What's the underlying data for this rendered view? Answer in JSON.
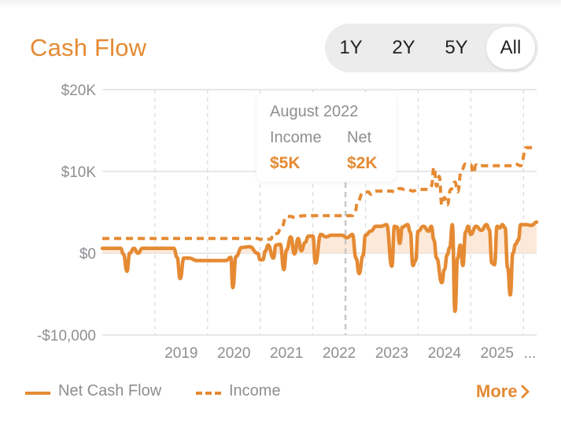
{
  "title": "Cash Flow",
  "range": {
    "options": [
      "1Y",
      "2Y",
      "5Y",
      "All"
    ],
    "selected": "All"
  },
  "tooltip": {
    "date": "August 2022",
    "income_label": "Income",
    "net_label": "Net",
    "income_value": "$5K",
    "net_value": "$2K"
  },
  "legend": {
    "net": "Net Cash Flow",
    "income": "Income"
  },
  "more_label": "More",
  "colors": {
    "accent": "#e58a33",
    "fill": "#fbe3cf",
    "grid": "#d9d9d9",
    "axis_text": "#8e8e93"
  },
  "chart_data": {
    "type": "line",
    "ylim": [
      -10000,
      20000
    ],
    "xlim": [
      2018.0,
      2026.25
    ],
    "y_ticks": [
      20000,
      10000,
      0,
      -10000
    ],
    "y_tick_labels": [
      "$20K",
      "$10K",
      "$0",
      "-$10,000"
    ],
    "x_tick_labels": [
      "2019",
      "2020",
      "2021",
      "2022",
      "2023",
      "2024",
      "2025",
      "..."
    ],
    "grid": true,
    "highlight_x": 2022.62,
    "series": [
      {
        "name": "Net Cash Flow",
        "style": "solid",
        "fill": true,
        "x": [
          2018.0,
          2018.35,
          2018.4,
          2018.47,
          2018.52,
          2018.6,
          2018.68,
          2018.76,
          2018.84,
          2019.0,
          2019.2,
          2019.36,
          2019.42,
          2019.48,
          2019.55,
          2019.65,
          2019.8,
          2020.0,
          2020.2,
          2020.35,
          2020.44,
          2020.48,
          2020.54,
          2020.65,
          2020.8,
          2020.95,
          2021.0,
          2021.05,
          2021.1,
          2021.15,
          2021.25,
          2021.3,
          2021.38,
          2021.45,
          2021.5,
          2021.58,
          2021.65,
          2021.72,
          2021.78,
          2021.85,
          2021.92,
          2022.0,
          2022.05,
          2022.15,
          2022.25,
          2022.35,
          2022.45,
          2022.55,
          2022.65,
          2022.75,
          2022.82,
          2022.88,
          2022.95,
          2023.0,
          2023.1,
          2023.2,
          2023.3,
          2023.4,
          2023.5,
          2023.55,
          2023.6,
          2023.65,
          2023.7,
          2023.8,
          2023.85,
          2023.9,
          2023.95,
          2024.0,
          2024.1,
          2024.2,
          2024.25,
          2024.3,
          2024.35,
          2024.45,
          2024.5,
          2024.55,
          2024.6,
          2024.65,
          2024.7,
          2024.75,
          2024.8,
          2024.85,
          2024.9,
          2024.95,
          2025.0,
          2025.1,
          2025.2,
          2025.3,
          2025.35,
          2025.4,
          2025.45,
          2025.5,
          2025.55,
          2025.6,
          2025.65,
          2025.7,
          2025.75,
          2025.8,
          2025.85,
          2025.9,
          2025.95,
          2026.05,
          2026.15,
          2026.25
        ],
        "values": [
          600,
          600,
          -100,
          -2200,
          0,
          600,
          0,
          600,
          600,
          600,
          600,
          600,
          -500,
          -3100,
          -600,
          -600,
          -900,
          -900,
          -900,
          -900,
          -500,
          -4200,
          -400,
          700,
          800,
          0,
          -800,
          -800,
          300,
          1000,
          -600,
          1000,
          1100,
          -2000,
          400,
          2000,
          -100,
          1800,
          300,
          1300,
          2100,
          2100,
          -1200,
          2300,
          2000,
          2200,
          2200,
          2200,
          1900,
          2300,
          -600,
          -2500,
          -300,
          2200,
          2700,
          3300,
          3300,
          3500,
          -1600,
          3300,
          3200,
          1200,
          3200,
          3500,
          2600,
          -1500,
          -900,
          2700,
          3300,
          2700,
          3300,
          1600,
          -600,
          -3600,
          -2000,
          -200,
          700,
          3500,
          -7100,
          -600,
          1000,
          -1500,
          2600,
          3300,
          2300,
          3300,
          2800,
          3500,
          2900,
          -1200,
          -1400,
          3300,
          3100,
          3500,
          3100,
          -1800,
          -5100,
          0,
          1100,
          1600,
          3500,
          3500,
          3400,
          3800
        ]
      },
      {
        "name": "Income",
        "style": "dashed",
        "fill": false,
        "x": [
          2018.0,
          2020.95,
          2021.0,
          2021.2,
          2021.25,
          2021.32,
          2021.4,
          2021.5,
          2021.6,
          2021.62,
          2021.85,
          2022.0,
          2022.5,
          2022.75,
          2022.8,
          2022.85,
          2022.95,
          2023.05,
          2023.1,
          2023.2,
          2023.5,
          2023.55,
          2023.65,
          2023.75,
          2023.8,
          2023.9,
          2024.0,
          2024.2,
          2024.25,
          2024.3,
          2024.35,
          2024.4,
          2024.45,
          2024.5,
          2024.55,
          2024.62,
          2024.7,
          2024.75,
          2024.82,
          2024.9,
          2024.95,
          2025.0,
          2025.05,
          2025.1,
          2025.15,
          2025.2,
          2025.8,
          2025.85,
          2025.95,
          2026.05,
          2026.25
        ],
        "values": [
          1800,
          1800,
          1700,
          1700,
          2400,
          2400,
          3100,
          4500,
          4500,
          4400,
          4600,
          4600,
          4600,
          4600,
          5000,
          6300,
          7400,
          7500,
          7200,
          7600,
          7600,
          7500,
          7900,
          7800,
          7800,
          7600,
          7800,
          7800,
          8200,
          10500,
          8200,
          9400,
          5900,
          6800,
          5900,
          7800,
          8700,
          7500,
          10100,
          10900,
          10800,
          10800,
          9800,
          10800,
          10600,
          10700,
          10700,
          10900,
          10700,
          12900,
          12900
        ]
      }
    ]
  }
}
